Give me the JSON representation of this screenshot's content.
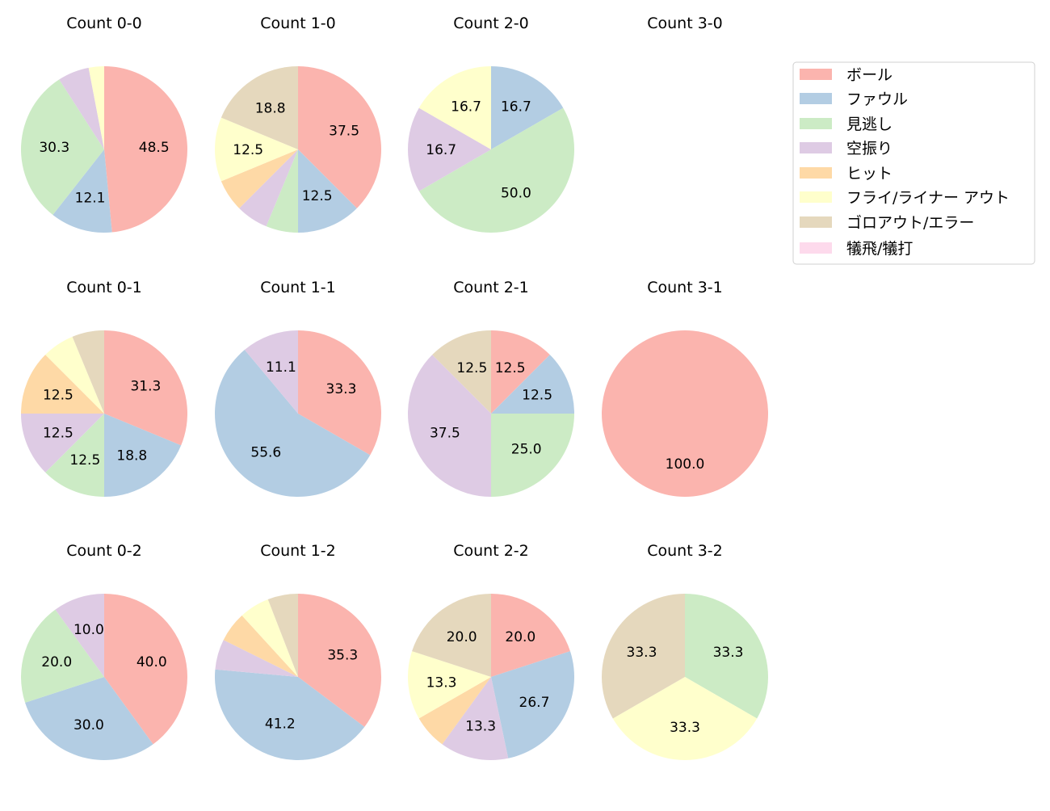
{
  "chart_data": {
    "type": "pie",
    "categories": [
      "ボール",
      "ファウル",
      "見逃し",
      "空振り",
      "ヒット",
      "フライ/ライナー アウト",
      "ゴロアウト/エラー",
      "犠飛/犠打"
    ],
    "colors": [
      "#fbb4ae",
      "#b3cde3",
      "#ccebc5",
      "#decbe4",
      "#fed9a6",
      "#ffffcc",
      "#e5d8bd",
      "#fddaec"
    ],
    "legend_placement": "upper-right",
    "label_format": "percent, 1 decimal, shown for slices >= 10%",
    "start_angle": "top, clockwise",
    "pies": [
      {
        "title": "Count 0-0",
        "values": [
          48.5,
          12.1,
          30.3,
          6.1,
          0,
          3.0,
          0,
          0
        ]
      },
      {
        "title": "Count 1-0",
        "values": [
          37.5,
          12.5,
          6.25,
          6.25,
          6.25,
          12.5,
          18.75,
          0
        ]
      },
      {
        "title": "Count 2-0",
        "values": [
          0,
          16.7,
          50.0,
          16.7,
          0,
          16.7,
          0,
          0
        ]
      },
      {
        "title": "Count 3-0",
        "values": []
      },
      {
        "title": "Count 0-1",
        "values": [
          31.25,
          18.75,
          12.5,
          12.5,
          12.5,
          6.25,
          6.25,
          0
        ]
      },
      {
        "title": "Count 1-1",
        "values": [
          33.3,
          55.6,
          0,
          11.1,
          0,
          0,
          0,
          0
        ]
      },
      {
        "title": "Count 2-1",
        "values": [
          12.5,
          12.5,
          25.0,
          37.5,
          0,
          0,
          12.5,
          0
        ]
      },
      {
        "title": "Count 3-1",
        "values": [
          100.0,
          0,
          0,
          0,
          0,
          0,
          0,
          0
        ]
      },
      {
        "title": "Count 0-2",
        "values": [
          40.0,
          30.0,
          20.0,
          10.0,
          0,
          0,
          0,
          0
        ]
      },
      {
        "title": "Count 1-2",
        "values": [
          35.3,
          41.2,
          0,
          5.9,
          5.9,
          5.9,
          5.9,
          0
        ]
      },
      {
        "title": "Count 2-2",
        "values": [
          20.0,
          26.7,
          0,
          13.3,
          6.7,
          13.3,
          20.0,
          0
        ]
      },
      {
        "title": "Count 3-2",
        "values": [
          0,
          0,
          33.3,
          0,
          0,
          33.3,
          33.3,
          0
        ]
      }
    ]
  }
}
